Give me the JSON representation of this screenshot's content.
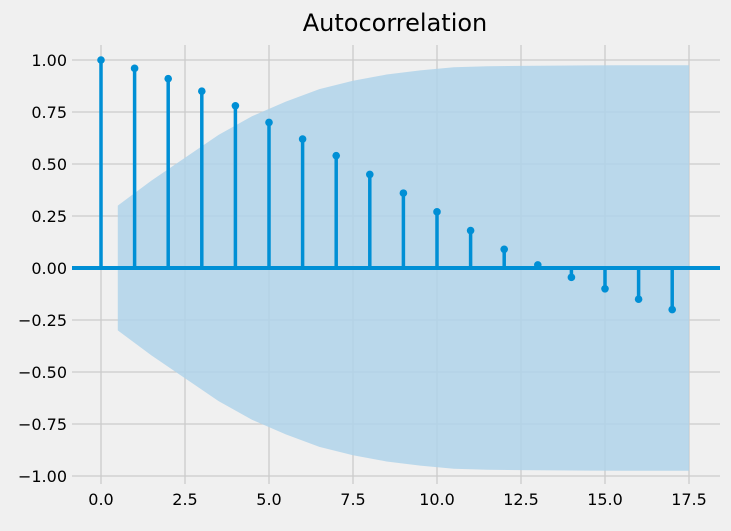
{
  "chart_data": {
    "type": "scatter",
    "subtype": "stem",
    "title": "Autocorrelation",
    "xlabel": "",
    "ylabel": "",
    "xlim": [
      -0.85,
      18.35
    ],
    "ylim": [
      -1.05,
      1.1
    ],
    "x_ticks": [
      0.0,
      2.5,
      5.0,
      7.5,
      10.0,
      12.5,
      15.0,
      17.5
    ],
    "x_tick_labels": [
      "0.0",
      "2.5",
      "5.0",
      "7.5",
      "10.0",
      "12.5",
      "15.0",
      "17.5"
    ],
    "y_ticks": [
      -1.0,
      -0.75,
      -0.5,
      -0.25,
      0.0,
      0.25,
      0.5,
      0.75,
      1.0
    ],
    "y_tick_labels": [
      "−1.00",
      "−0.75",
      "−0.50",
      "−0.25",
      "0.00",
      "0.25",
      "0.50",
      "0.75",
      "1.00"
    ],
    "grid": true,
    "legend": "none",
    "x": [
      0,
      1,
      2,
      3,
      4,
      5,
      6,
      7,
      8,
      9,
      10,
      11,
      12,
      13,
      14,
      15,
      16,
      17
    ],
    "values": [
      1.0,
      0.96,
      0.91,
      0.85,
      0.78,
      0.7,
      0.62,
      0.54,
      0.45,
      0.36,
      0.27,
      0.18,
      0.09,
      0.015,
      -0.045,
      -0.1,
      -0.15,
      -0.2
    ],
    "confidence_band": {
      "x_start": 0.5,
      "x_end": 17.5,
      "upper": [
        0.3,
        0.42,
        0.53,
        0.64,
        0.73,
        0.8,
        0.86,
        0.9,
        0.93,
        0.95,
        0.965,
        0.97,
        0.972,
        0.973,
        0.974,
        0.975,
        0.975,
        0.975
      ],
      "lower": [
        -0.3,
        -0.42,
        -0.53,
        -0.64,
        -0.73,
        -0.8,
        -0.86,
        -0.9,
        -0.93,
        -0.95,
        -0.965,
        -0.97,
        -0.972,
        -0.973,
        -0.974,
        -0.975,
        -0.975,
        -0.975
      ]
    },
    "colors": {
      "background": "#f0f0f0",
      "stem": "#008fd5",
      "band": "#b0d4ea",
      "grid": "#cbcbcb"
    }
  }
}
